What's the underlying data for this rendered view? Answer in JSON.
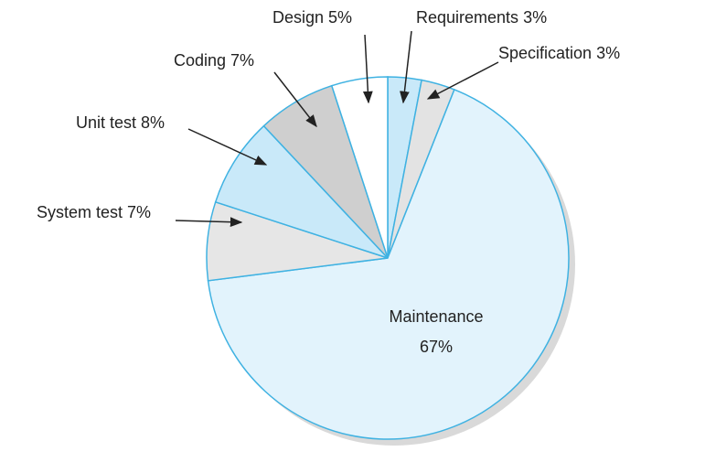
{
  "chart_data": {
    "type": "pie",
    "categories": [
      "Requirements",
      "Specification",
      "Maintenance",
      "System test",
      "Unit test",
      "Coding",
      "Design"
    ],
    "values": [
      3,
      3,
      67,
      7,
      8,
      7,
      5
    ],
    "value_labels": [
      "3%",
      "3%",
      "67%",
      "7%",
      "8%",
      "7%",
      "5%"
    ],
    "colors": [
      "#c9e9f9",
      "#e3e3e3",
      "#e2f3fc",
      "#e6e6e6",
      "#c9e9f9",
      "#cfcfcf",
      "#ffffff"
    ],
    "edge_color": "#3fb2e2"
  }
}
